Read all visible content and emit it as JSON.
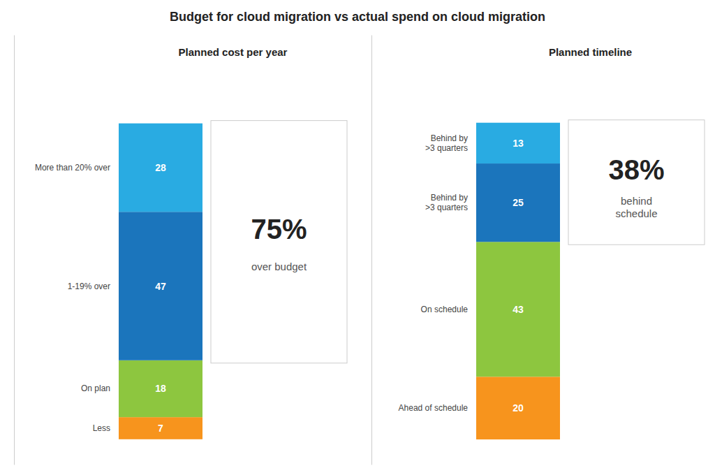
{
  "chart_data": [
    {
      "type": "bar",
      "stacked": true,
      "title": "Budget for cloud migration vs actual spend on cloud migration",
      "subtitle": "Planned cost per year",
      "categories": [
        null
      ],
      "series": [
        {
          "name": "Less",
          "color": "#F7941D",
          "values": [
            7
          ]
        },
        {
          "name": "On plan",
          "color": "#8DC63F",
          "values": [
            18
          ]
        },
        {
          "name": "1-19% over",
          "color": "#1B75BC",
          "values": [
            47
          ]
        },
        {
          "name": "More than 20% over",
          "color": "#29ABE2",
          "values": [
            28
          ]
        }
      ],
      "annotations": [
        "75%",
        "over budget"
      ],
      "ylim": [
        -8,
        128
      ],
      "data_labels": true,
      "tick_labels": false,
      "grid": false
    },
    {
      "type": "bar",
      "stacked": true,
      "subtitle": "Planned timeline",
      "categories": [
        null
      ],
      "series": [
        {
          "name": "Ahead of schedule",
          "color": "#F7941D",
          "values": [
            20
          ]
        },
        {
          "name": "On schedule",
          "color": "#8DC63F",
          "values": [
            43
          ]
        },
        {
          "name": "Behind by\n>3 quarters",
          "color": "#1B75BC",
          "values": [
            25
          ]
        },
        {
          "name": "Behind by\n>3 quarters",
          "color": "#29ABE2",
          "values": [
            13
          ]
        }
      ],
      "annotations": [
        "38%",
        "behind\nschedule"
      ],
      "ylim": [
        -8,
        129
      ],
      "data_labels": true,
      "tick_labels": false,
      "grid": false
    }
  ]
}
